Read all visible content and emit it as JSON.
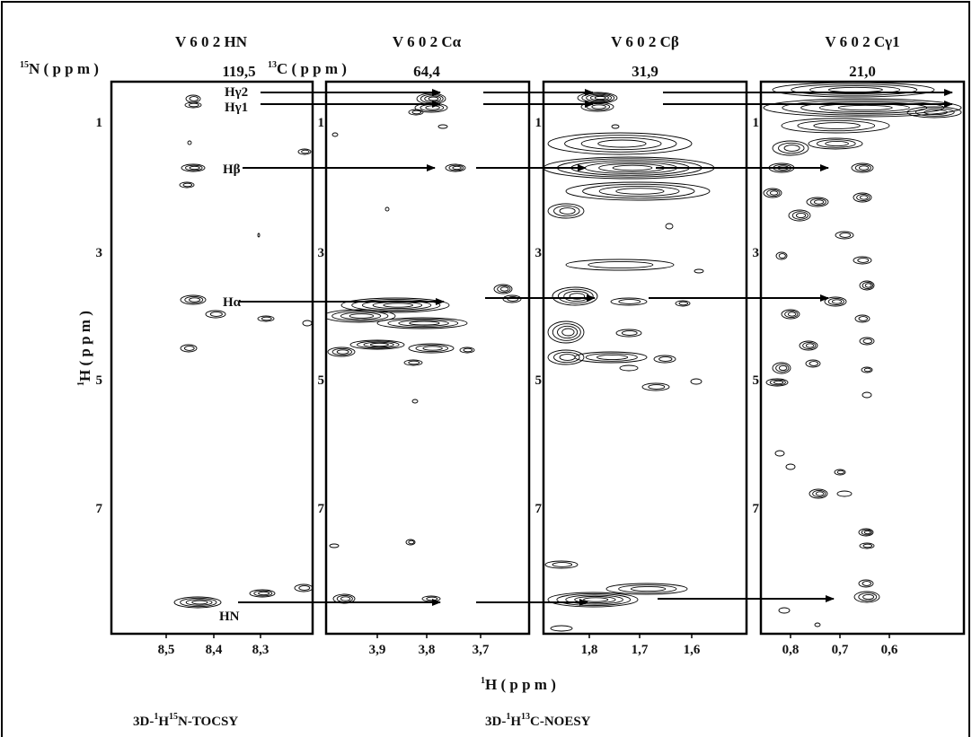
{
  "panels": [
    {
      "title": "V 6 0 2 HN",
      "shift_label": {
        "sup": "15",
        "text": "N ( p p m )"
      },
      "shift": "119,5",
      "x_ticks": [
        "8,5",
        "8,4",
        "8,3"
      ]
    },
    {
      "title": "V 6 0 2 Cα",
      "shift_label": {
        "sup": "13",
        "text": "C ( p p m )"
      },
      "shift": "64,4",
      "x_ticks": [
        "3,9",
        "3,8",
        "3,7"
      ]
    },
    {
      "title": "V 6 0 2 Cβ",
      "shift": "31,9",
      "x_ticks": [
        "1,8",
        "1,7",
        "1,6"
      ]
    },
    {
      "title": "V 6 0 2 Cγ1",
      "shift": "21,0",
      "x_ticks": [
        "0,8",
        "0,7",
        "0,6"
      ]
    }
  ],
  "y_ticks": [
    "1",
    "3",
    "5",
    "7"
  ],
  "y_axis_label": {
    "sup": "1",
    "text": "H ( p p m )"
  },
  "x_axis_label": {
    "sup": "1",
    "text": "H ( p p m )"
  },
  "atom_labels": [
    "Hγ2",
    "Hγ1",
    "Hβ",
    "Hα",
    "HN"
  ],
  "experiments": [
    {
      "prefix": "3D-",
      "sup1": "1",
      "mid": "H",
      "sup2": "15",
      "suffix": "N-TOCSY"
    },
    {
      "prefix": "3D-",
      "sup1": "1",
      "mid": "H",
      "sup2": "13",
      "suffix": "C-NOESY"
    }
  ]
}
